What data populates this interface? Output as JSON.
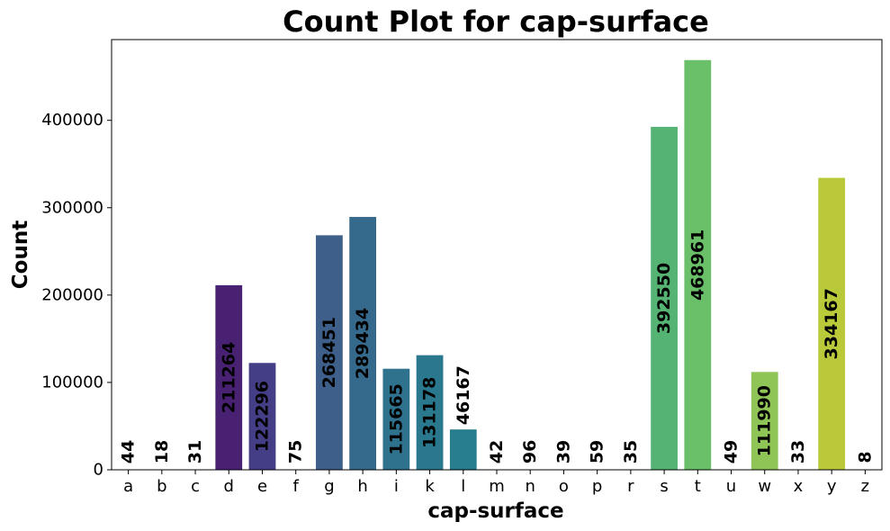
{
  "chart_data": {
    "type": "bar",
    "title": "Count Plot for cap-surface",
    "xlabel": "cap-surface",
    "ylabel": "Count",
    "categories": [
      "a",
      "b",
      "c",
      "d",
      "e",
      "f",
      "g",
      "h",
      "i",
      "k",
      "l",
      "m",
      "n",
      "o",
      "p",
      "r",
      "s",
      "t",
      "u",
      "w",
      "x",
      "y",
      "z"
    ],
    "values": [
      44,
      18,
      31,
      211264,
      122296,
      75,
      268451,
      289434,
      115665,
      131178,
      46167,
      42,
      96,
      39,
      59,
      35,
      392550,
      468961,
      49,
      111990,
      33,
      334167,
      8
    ],
    "colors": [
      "#440154",
      "#440154",
      "#440154",
      "#482173",
      "#433e85",
      "#3a4f8a",
      "#3e5f8a",
      "#366a8c",
      "#2f728e",
      "#2a788e",
      "#287d8e",
      "#25838e",
      "#21918c",
      "#1f988b",
      "#20a486",
      "#2db27d",
      "#55b374",
      "#6abf69",
      "#84c95c",
      "#8fc456",
      "#a5d13e",
      "#bac93a",
      "#cde11d"
    ],
    "bar_labels": [
      "44",
      "18",
      "31",
      "211264",
      "122296",
      "75",
      "268451",
      "289434",
      "115665",
      "131178",
      "46167",
      "42",
      "96",
      "39",
      "59",
      "35",
      "392550",
      "468961",
      "49",
      "111990",
      "33",
      "334167",
      "8"
    ],
    "y_ticks": [
      0,
      100000,
      200000,
      300000,
      400000
    ],
    "y_tick_labels": [
      "0",
      "100000",
      "200000",
      "300000",
      "400000"
    ],
    "ylim": [
      0,
      492409
    ],
    "grid": false,
    "legend": "none"
  }
}
